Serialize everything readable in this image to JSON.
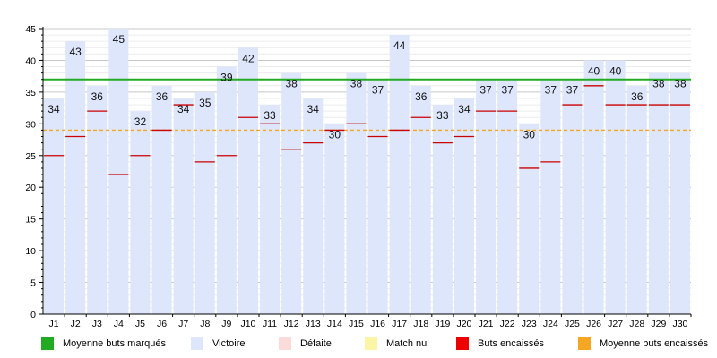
{
  "chart_data": {
    "type": "bar",
    "categories": [
      "J1",
      "J2",
      "J3",
      "J4",
      "J5",
      "J6",
      "J7",
      "J8",
      "J9",
      "J10",
      "J11",
      "J12",
      "J13",
      "J14",
      "J15",
      "J16",
      "J17",
      "J18",
      "J19",
      "J20",
      "J21",
      "J22",
      "J23",
      "J24",
      "J25",
      "J26",
      "J27",
      "J28",
      "J29",
      "J30"
    ],
    "series": [
      {
        "name": "Victoire",
        "values": [
          34,
          43,
          36,
          45,
          32,
          36,
          34,
          35,
          39,
          42,
          33,
          38,
          34,
          30,
          38,
          37,
          44,
          36,
          33,
          34,
          37,
          37,
          30,
          37,
          37,
          40,
          40,
          36,
          38,
          38
        ]
      },
      {
        "name": "Buts encaissés",
        "values": [
          25,
          28,
          32,
          22,
          25,
          29,
          33,
          24,
          25,
          31,
          30,
          26,
          27,
          29,
          30,
          28,
          29,
          31,
          27,
          28,
          32,
          32,
          23,
          24,
          33,
          36,
          33,
          33,
          33,
          33
        ]
      }
    ],
    "reference_lines": [
      {
        "name": "Moyenne buts marqués",
        "value": 37
      },
      {
        "name": "Moyenne buts encaissés",
        "value": 29
      }
    ],
    "ylim": [
      0,
      45
    ],
    "yticks": [
      0,
      5,
      10,
      15,
      20,
      25,
      30,
      35,
      40,
      45
    ],
    "grid": true,
    "legend_position": "bottom"
  },
  "legend": [
    {
      "label": "Moyenne buts marqués",
      "color": "#22aa22"
    },
    {
      "label": "Victoire",
      "color": "#dde6fb"
    },
    {
      "label": "Défaite",
      "color": "#fbdada"
    },
    {
      "label": "Match nul",
      "color": "#fbf6a6"
    },
    {
      "label": "Buts encaissés",
      "color": "#ee0000"
    },
    {
      "label": "Moyenne buts encaissés",
      "color": "#f5a623"
    }
  ],
  "colors": {
    "bar": "#dde6fb",
    "conceded_tick": "#cc0000",
    "avg_scored": "#22aa22",
    "avg_conceded": "#f5a623",
    "axis": "#000000",
    "grid": "#d8d8d8"
  }
}
